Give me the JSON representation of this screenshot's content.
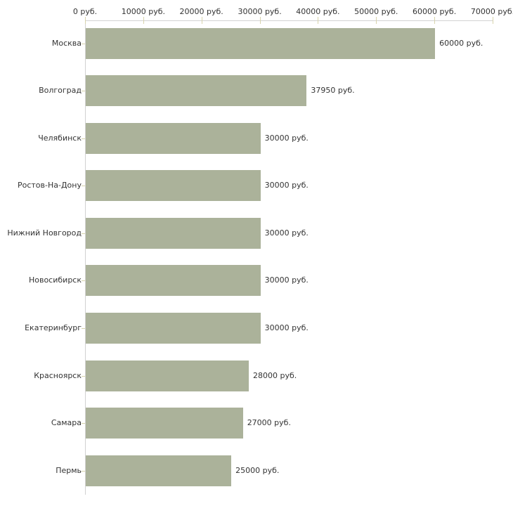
{
  "chart_data": {
    "type": "bar",
    "orientation": "horizontal",
    "title": "",
    "xlabel": "",
    "ylabel": "",
    "categories": [
      "Москва",
      "Волгоград",
      "Челябинск",
      "Ростов-На-Дону",
      "Нижний Новгород",
      "Новосибирск",
      "Екатеринбург",
      "Красноярск",
      "Самара",
      "Пермь"
    ],
    "values": [
      60000,
      37950,
      30000,
      30000,
      30000,
      30000,
      30000,
      28000,
      27000,
      25000
    ],
    "value_labels": [
      "60000 руб.",
      "37950 руб.",
      "30000 руб.",
      "30000 руб.",
      "30000 руб.",
      "30000 руб.",
      "30000 руб.",
      "28000 руб.",
      "27000 руб.",
      "25000 руб."
    ],
    "x_tick_values": [
      0,
      10000,
      20000,
      30000,
      40000,
      50000,
      60000,
      70000
    ],
    "x_tick_labels": [
      "0 руб.",
      "10000 руб.",
      "20000 руб.",
      "30000 руб.",
      "40000 руб.",
      "50000 руб.",
      "60000 руб.",
      "70000 руб."
    ],
    "xlim": [
      0,
      70000
    ],
    "unit": "руб.",
    "grid": false,
    "legend": false,
    "bar_color": "#abb29a",
    "axis_line_color": "#d2d2d2",
    "tick_mark_color": "#d8d4ac",
    "text_color": "#333333",
    "background_color": "#ffffff"
  }
}
